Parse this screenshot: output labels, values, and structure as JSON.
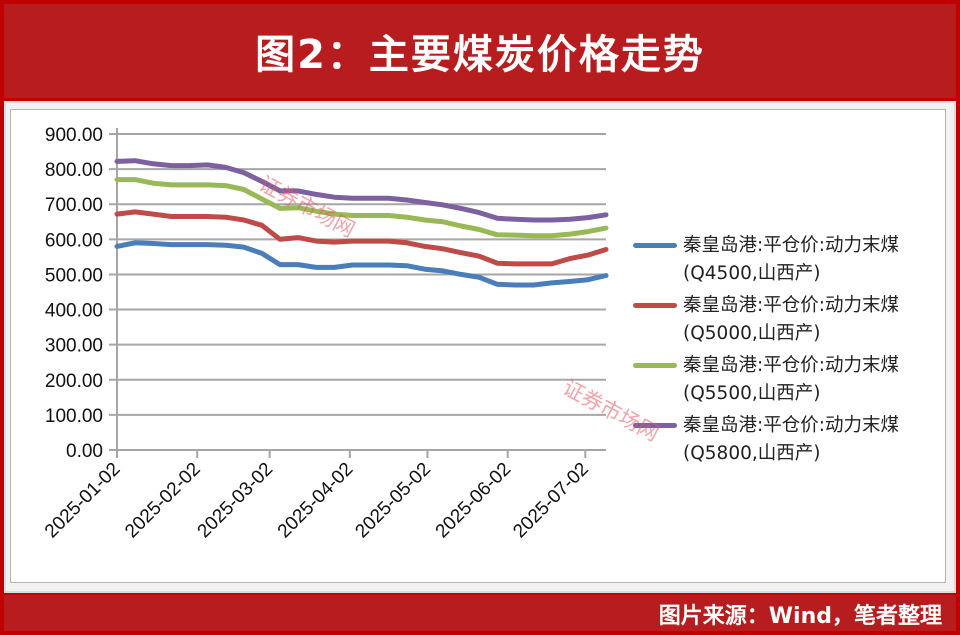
{
  "header": {
    "title": "图2：主要煤炭价格走势"
  },
  "footer": {
    "source": "图片来源：Wind，笔者整理"
  },
  "watermark": {
    "text": "证券市场网"
  },
  "chart_data": {
    "type": "line",
    "title": "图2：主要煤炭价格走势",
    "xlabel": "",
    "ylabel": "",
    "ylim": [
      0,
      900
    ],
    "yticks": [
      "0.00",
      "100.00",
      "200.00",
      "300.00",
      "400.00",
      "500.00",
      "600.00",
      "700.00",
      "800.00",
      "900.00"
    ],
    "xticks": [
      "2025-01-02",
      "2025-02-02",
      "2025-03-02",
      "2025-04-02",
      "2025-05-02",
      "2025-06-02",
      "2025-07-02"
    ],
    "grid": true,
    "legend_position": "right",
    "x": [
      "2025-01-02",
      "2025-01-09",
      "2025-01-16",
      "2025-01-23",
      "2025-01-30",
      "2025-02-06",
      "2025-02-13",
      "2025-02-20",
      "2025-02-27",
      "2025-03-06",
      "2025-03-13",
      "2025-03-20",
      "2025-03-27",
      "2025-04-03",
      "2025-04-10",
      "2025-04-17",
      "2025-04-24",
      "2025-05-01",
      "2025-05-08",
      "2025-05-15",
      "2025-05-22",
      "2025-05-29",
      "2025-06-05",
      "2025-06-12",
      "2025-06-19",
      "2025-06-26",
      "2025-07-03",
      "2025-07-10"
    ],
    "series": [
      {
        "name": "秦皇岛港:平仓价:动力末煤(Q4500,山西产)",
        "color": "#4a7ebb",
        "values": [
          580,
          590,
          588,
          585,
          585,
          585,
          583,
          578,
          560,
          528,
          528,
          520,
          520,
          527,
          527,
          527,
          525,
          515,
          510,
          500,
          492,
          472,
          470,
          470,
          476,
          480,
          485,
          497
        ]
      },
      {
        "name": "秦皇岛港:平仓价:动力末煤(Q5000,山西产)",
        "color": "#be4b48",
        "values": [
          672,
          678,
          672,
          665,
          665,
          665,
          663,
          655,
          640,
          600,
          605,
          595,
          592,
          595,
          595,
          595,
          590,
          580,
          573,
          562,
          552,
          532,
          530,
          530,
          530,
          545,
          555,
          571
        ]
      },
      {
        "name": "秦皇岛港:平仓价:动力末煤(Q5500,山西产)",
        "color": "#98b954",
        "values": [
          770,
          770,
          760,
          755,
          755,
          755,
          753,
          742,
          715,
          688,
          690,
          680,
          672,
          668,
          668,
          668,
          663,
          655,
          650,
          638,
          628,
          613,
          612,
          610,
          610,
          615,
          622,
          632
        ]
      },
      {
        "name": "秦皇岛港:平仓价:动力末煤(Q5800,山西产)",
        "color": "#7d60a0",
        "values": [
          822,
          824,
          815,
          810,
          810,
          812,
          805,
          790,
          765,
          738,
          738,
          728,
          720,
          717,
          717,
          717,
          712,
          705,
          698,
          688,
          676,
          660,
          657,
          655,
          655,
          657,
          662,
          670
        ]
      }
    ]
  },
  "legend": {
    "items": [
      {
        "line1": "秦皇岛港:平仓价:动力末煤",
        "line2": "(Q4500,山西产)",
        "color": "#4a7ebb"
      },
      {
        "line1": "秦皇岛港:平仓价:动力末煤",
        "line2": "(Q5000,山西产)",
        "color": "#be4b48"
      },
      {
        "line1": "秦皇岛港:平仓价:动力末煤",
        "line2": "(Q5500,山西产)",
        "color": "#98b954"
      },
      {
        "line1": "秦皇岛港:平仓价:动力末煤",
        "line2": "(Q5800,山西产)",
        "color": "#7d60a0"
      }
    ]
  }
}
